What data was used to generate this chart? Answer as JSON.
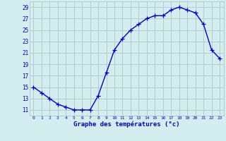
{
  "x": [
    0,
    1,
    2,
    3,
    4,
    5,
    6,
    7,
    8,
    9,
    10,
    11,
    12,
    13,
    14,
    15,
    16,
    17,
    18,
    19,
    20,
    21,
    22,
    23
  ],
  "y": [
    15,
    14,
    13,
    12,
    11.5,
    11,
    11,
    11,
    13.5,
    17.5,
    21.5,
    23.5,
    25,
    26,
    27,
    27.5,
    27.5,
    28.5,
    29,
    28.5,
    28,
    26,
    21.5,
    20
  ],
  "line_color": "#0000cc",
  "marker": "+",
  "marker_size": 4,
  "marker_color": "#0000cc",
  "bg_color": "#d4eef0",
  "grid_color": "#b0cece",
  "xlabel": "Graphe des températures (°c)",
  "xlabel_color": "#0000cc",
  "tick_color": "#0000cc",
  "ylim": [
    10,
    30
  ],
  "yticks": [
    11,
    13,
    15,
    17,
    19,
    21,
    23,
    25,
    27,
    29
  ],
  "xticks": [
    0,
    1,
    2,
    3,
    4,
    5,
    6,
    7,
    8,
    9,
    10,
    11,
    12,
    13,
    14,
    15,
    16,
    17,
    18,
    19,
    20,
    21,
    22,
    23
  ],
  "line_width": 1.0
}
